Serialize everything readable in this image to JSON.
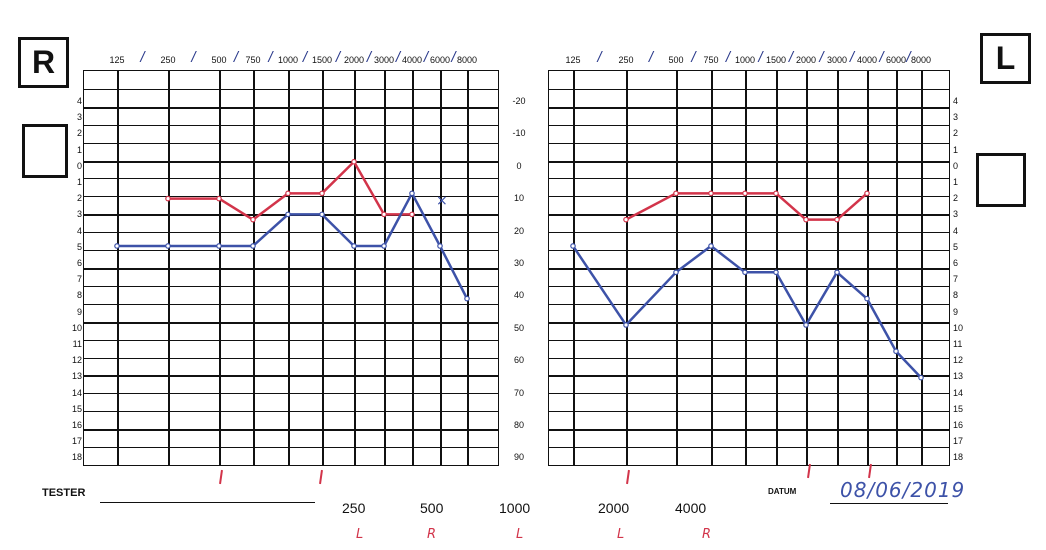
{
  "right_ear_label": "R",
  "left_ear_label": "L",
  "frequencies": [
    "125",
    "250",
    "500",
    "750",
    "1000",
    "1500",
    "2000",
    "3000",
    "4000",
    "6000",
    "8000"
  ],
  "levels_left_scale": [
    "4",
    "3",
    "2",
    "1",
    "0",
    "1",
    "2",
    "3",
    "4",
    "5",
    "6",
    "7",
    "8",
    "9",
    "10",
    "11",
    "12",
    "13",
    "14",
    "15",
    "16",
    "17",
    "18"
  ],
  "db_scale": [
    "-20",
    "-10",
    "0",
    "10",
    "20",
    "30",
    "40",
    "50",
    "60",
    "70",
    "80",
    "90"
  ],
  "tester_label": "TESTER",
  "datum_label": "DATUM",
  "date_value": "08/06/2019",
  "summary_freqs": [
    "250",
    "500",
    "1000",
    "2000",
    "4000"
  ],
  "summary_sides": [
    "L",
    "R",
    "L",
    "L",
    "R"
  ],
  "colors": {
    "red": "#d2344a",
    "blue": "#3d52a8",
    "grid": "#111111"
  },
  "chart_data": [
    {
      "type": "line",
      "ear": "R",
      "x": [
        "125",
        "250",
        "500",
        "750",
        "1000",
        "1500",
        "2000",
        "3000",
        "4000",
        "6000",
        "8000"
      ],
      "xlabel": "",
      "ylabel": "",
      "ylim": [
        -20,
        90
      ],
      "series": [
        {
          "values": [
            null,
            6,
            6,
            10,
            5,
            5,
            -1,
            9,
            9,
            null,
            null
          ]
        },
        {
          "values": [
            15,
            15,
            15,
            15,
            9,
            9,
            15,
            15,
            5,
            15,
            25
          ]
        }
      ]
    },
    {
      "type": "line",
      "ear": "L",
      "x": [
        "125",
        "250",
        "500",
        "750",
        "1000",
        "1500",
        "2000",
        "3000",
        "4000",
        "6000",
        "8000"
      ],
      "xlabel": "",
      "ylabel": "",
      "ylim": [
        -20,
        90
      ],
      "series": [
        {
          "values": [
            null,
            10,
            5,
            5,
            5,
            5,
            10,
            10,
            5,
            null,
            null
          ]
        },
        {
          "values": [
            15,
            30,
            20,
            15,
            20,
            20,
            30,
            20,
            25,
            35,
            40
          ]
        }
      ]
    }
  ]
}
